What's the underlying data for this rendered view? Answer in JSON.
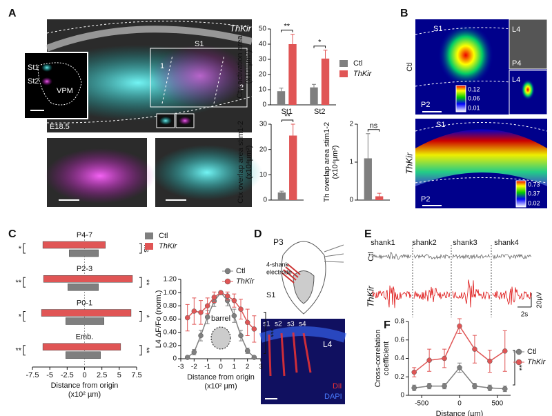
{
  "panels": {
    "A": {
      "letter": "A",
      "genotype": "ThKir",
      "texts": [
        "S1",
        "1",
        "2",
        "St1",
        "St2",
        "VPM",
        "E18.5"
      ]
    },
    "B": {
      "letter": "B",
      "rows": [
        "Ctl",
        "ThKir"
      ],
      "texts": [
        "S1",
        "L4",
        "P4",
        "L4",
        "P2",
        "S1",
        "P2"
      ],
      "scale_top": [
        "0.12",
        "0.06",
        "0.01"
      ],
      "scale_bottom": [
        "0.73",
        "0.37",
        "0.02"
      ]
    },
    "C": {
      "letter": "C"
    },
    "D": {
      "letter": "D",
      "age": "P3",
      "electrode": [
        "4-shank",
        "electrode"
      ],
      "region": "S1",
      "shanks": [
        "s1",
        "s2",
        "s3",
        "s4"
      ],
      "layer": "L4",
      "stains": [
        "DiI",
        "DAPI"
      ]
    },
    "E": {
      "letter": "E",
      "shanks": [
        "shank1",
        "shank2",
        "shank3",
        "shank4"
      ],
      "rows": [
        "Ctl",
        "ThKir"
      ],
      "scale": [
        "20µV",
        "2s"
      ]
    },
    "F": {
      "letter": "F"
    }
  },
  "chart_data": [
    {
      "type": "bar",
      "ylabel": [
        "Ctx activation area",
        "(x10⁴μm²)"
      ],
      "categories": [
        "St1",
        "St2"
      ],
      "series": [
        {
          "name": "Ctl",
          "color": "#7f7f7f",
          "values": [
            9,
            11.5
          ],
          "errors": [
            2,
            2
          ]
        },
        {
          "name": "ThKir",
          "color": "#e05555",
          "values": [
            40,
            30.5
          ],
          "errors": [
            6.5,
            5.5
          ]
        }
      ],
      "ylim": [
        0,
        50
      ],
      "yticks": [
        0,
        10,
        20,
        30,
        40,
        50
      ],
      "annotations": [
        "**",
        "*"
      ],
      "legend": "right"
    },
    {
      "type": "bar",
      "ylabel": [
        "Ctx overlap area stim1-2",
        "(x10⁴μm²)"
      ],
      "series": [
        {
          "name": "Ctl",
          "color": "#7f7f7f",
          "values": [
            3
          ],
          "errors": [
            0.5
          ]
        },
        {
          "name": "ThKir",
          "color": "#e05555",
          "values": [
            25.5
          ],
          "errors": [
            4.5
          ]
        }
      ],
      "ylim": [
        0,
        30
      ],
      "yticks": [
        0,
        10,
        20,
        30
      ],
      "annotations": [
        "**"
      ]
    },
    {
      "type": "bar",
      "ylabel": [
        "Th overlap area stim1-2",
        "(x10⁴μm²)"
      ],
      "series": [
        {
          "name": "Ctl",
          "color": "#7f7f7f",
          "values": [
            1.1
          ],
          "errors": [
            0.65
          ]
        },
        {
          "name": "ThKir",
          "color": "#e05555",
          "values": [
            0.1
          ],
          "errors": [
            0.08
          ]
        }
      ],
      "ylim": [
        0,
        2
      ],
      "yticks": [
        0,
        1,
        2
      ],
      "annotations": [
        "ns"
      ]
    },
    {
      "type": "range",
      "categories": [
        "P4-7",
        "P2-3",
        "P0-1",
        "Emb."
      ],
      "series": [
        {
          "name": "Ctl",
          "color": "#7f7f7f",
          "values": [
            [
              -2.2,
              2.0
            ],
            [
              -2.4,
              2.0
            ],
            [
              -2.7,
              2.8
            ],
            [
              -2.7,
              2.3
            ]
          ]
        },
        {
          "name": "ThKir",
          "color": "#e05555",
          "values": [
            [
              -6,
              3
            ],
            [
              -5.9,
              6.9
            ],
            [
              -6.2,
              6.7
            ],
            [
              -6,
              5.2
            ]
          ]
        }
      ],
      "xlim": [
        -7.5,
        7.5
      ],
      "xticks": [
        -7.5,
        -5,
        -2.5,
        0,
        2.5,
        5,
        7.5
      ],
      "xlabel": [
        "Distance from origin",
        "(x10² µm)"
      ],
      "annotations_left": [
        "*",
        "**",
        "*",
        "**"
      ],
      "annotations_right": [
        "ns",
        "**",
        "*",
        "**"
      ],
      "legend": "right"
    },
    {
      "type": "line",
      "x": [
        -2.5,
        -2,
        -1.5,
        -1,
        -0.5,
        0,
        0.5,
        1,
        1.5,
        2,
        2.5
      ],
      "series": [
        {
          "name": "Ctl",
          "color": "#7f7f7f",
          "values": [
            0.02,
            0.1,
            0.35,
            0.63,
            0.87,
            1.0,
            0.88,
            0.65,
            0.35,
            0.12,
            0.02
          ],
          "errors": [
            0.02,
            0.04,
            0.08,
            0.1,
            0.08,
            0,
            0.08,
            0.1,
            0.08,
            0.04,
            0.02
          ]
        },
        {
          "name": "ThKir",
          "color": "#e05555",
          "values": [
            0.62,
            0.72,
            0.7,
            0.8,
            0.93,
            1.0,
            0.95,
            0.88,
            0.75,
            0.55,
            0.45
          ],
          "errors": [
            0.2,
            0.2,
            0.18,
            0.12,
            0.08,
            0,
            0.06,
            0.1,
            0.15,
            0.2,
            0.2
          ]
        }
      ],
      "xlim": [
        -3,
        3
      ],
      "xticks": [
        -3,
        -2,
        -1,
        0,
        1,
        2,
        3
      ],
      "ylim": [
        0,
        1.2
      ],
      "yticks": [
        0,
        {
          "value": 0.2,
          "label": "0.20"
        },
        {
          "value": 0.4,
          "label": "0.40"
        },
        {
          "value": 0.6,
          "label": "0.60"
        },
        {
          "value": 0.8,
          "label": "0.80"
        },
        {
          "value": 1,
          "label": "1.00"
        },
        {
          "value": 1.2,
          "label": "1.20"
        }
      ],
      "ylabel": [
        "L4 ΔF/Fo (norm.)"
      ],
      "xlabel": [
        "Distance from origin",
        "(x10² µm)"
      ],
      "annotations": [
        "barrel",
        "***"
      ],
      "legend": "upper right"
    },
    {
      "type": "line",
      "x": [
        -600,
        -400,
        -200,
        0,
        200,
        400,
        600
      ],
      "series": [
        {
          "name": "Ctl",
          "color": "#7f7f7f",
          "values": [
            0.08,
            0.1,
            0.1,
            0.3,
            0.1,
            0.08,
            0.07
          ],
          "errors": [
            0.03,
            0.03,
            0.03,
            0.05,
            0.03,
            0.03,
            0.03
          ]
        },
        {
          "name": "ThKir",
          "color": "#e05555",
          "values": [
            0.25,
            0.38,
            0.4,
            0.75,
            0.5,
            0.37,
            0.48
          ],
          "errors": [
            0.05,
            0.12,
            0.1,
            0.08,
            0.15,
            0.12,
            0.22
          ]
        }
      ],
      "xlim": [
        -675,
        675
      ],
      "xticks": [
        -500,
        0,
        500
      ],
      "ylim": [
        0,
        0.8
      ],
      "yticks": [
        0,
        0.2,
        0.4,
        0.6,
        0.8
      ],
      "ylabel": [
        "Cross-correlation",
        "coefficient"
      ],
      "xlabel": [
        "Distance (µm)"
      ],
      "annotations": [
        "**"
      ],
      "legend": "right"
    }
  ]
}
